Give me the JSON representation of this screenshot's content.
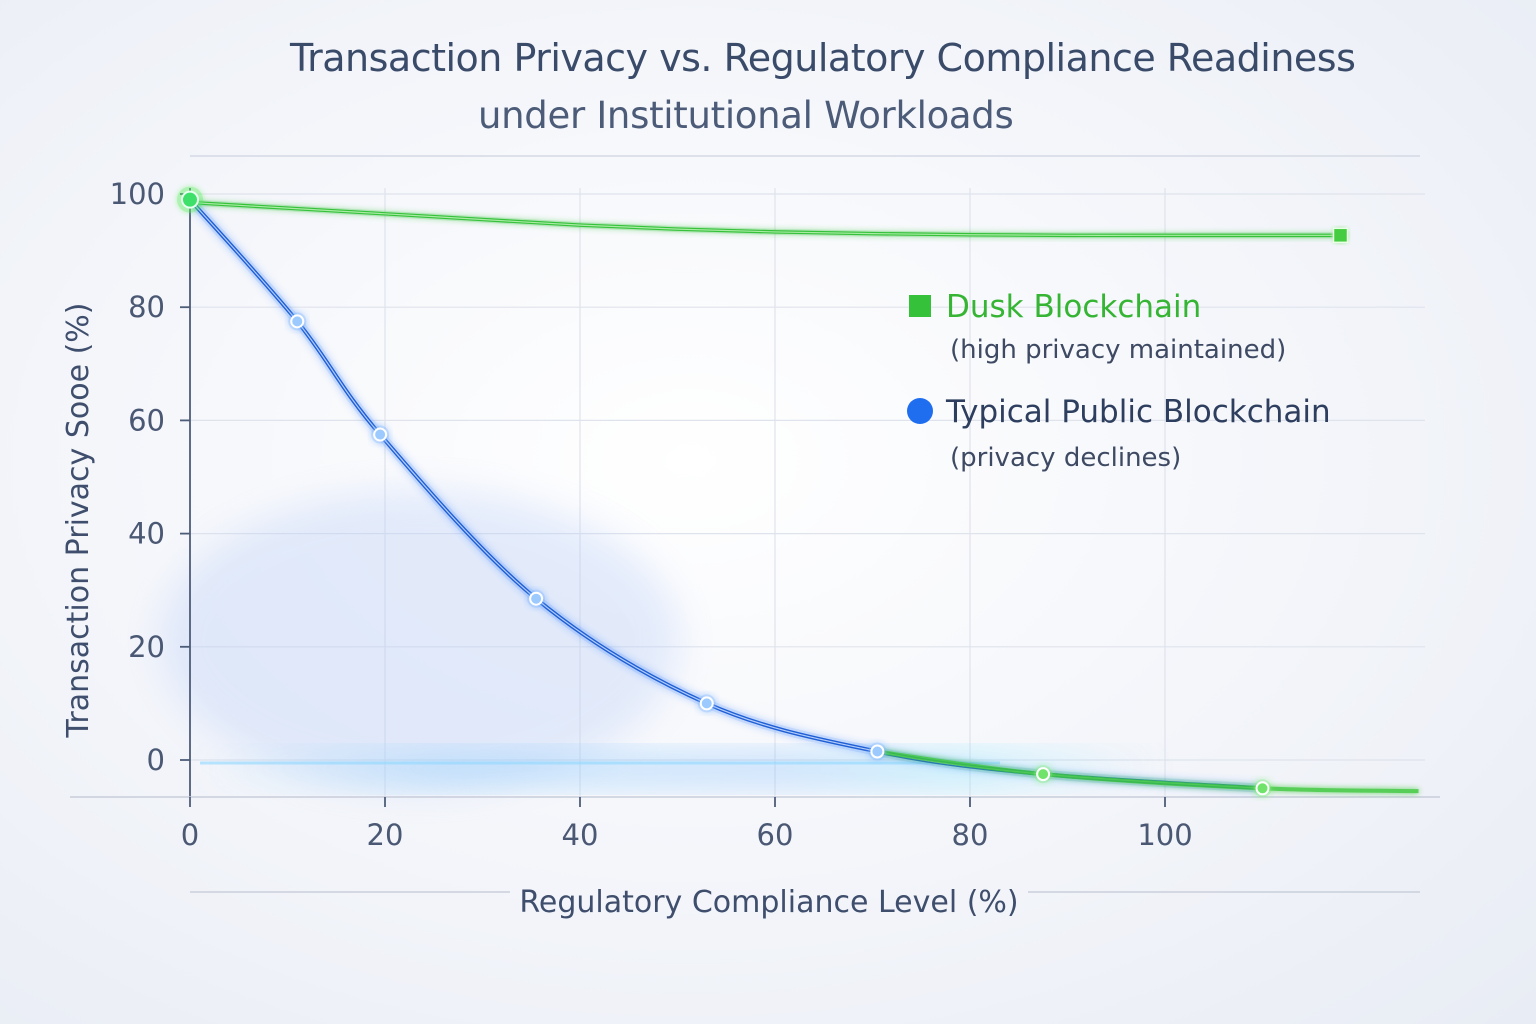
{
  "chart_data": {
    "type": "line",
    "title": "Transaction Privacy vs. Regulatory Compliance Readiness",
    "subtitle": "under Institutional Workloads",
    "xlabel": "Regulatory Compliance Level (%)",
    "ylabel": "Transaction Privacy Sooe (%)",
    "xlim": [
      0,
      125
    ],
    "ylim": [
      -7,
      100
    ],
    "x_ticks": [
      "0",
      "20",
      "40",
      "60",
      "80",
      "100"
    ],
    "y_ticks": [
      "0",
      "20",
      "40",
      "60",
      "80",
      "100"
    ],
    "grid": true,
    "legend_position": "right",
    "series": [
      {
        "name": "Dusk Blockchain",
        "note": "(high privacy maintained)",
        "color": "#35c23a",
        "marker": "square",
        "x": [
          0,
          10,
          20,
          30,
          40,
          50,
          60,
          70,
          80,
          90,
          100,
          105,
          118
        ],
        "y": [
          98.5,
          97.5,
          96.5,
          95.5,
          94.5,
          93.8,
          93.3,
          93.0,
          92.8,
          92.7,
          92.7,
          92.7,
          92.7
        ]
      },
      {
        "name": "Typical Public Blockchain",
        "note": "(privacy declines)",
        "color": "#1f5fd6",
        "marker": "circle",
        "x": [
          0,
          11,
          19.5,
          35.5,
          53,
          70.5,
          87.5,
          110
        ],
        "y": [
          99,
          77.5,
          57.5,
          28.5,
          10,
          1.5,
          -2.5,
          -5
        ]
      }
    ],
    "tail_extent_x": 126,
    "tail_extent_y": -5.5
  }
}
